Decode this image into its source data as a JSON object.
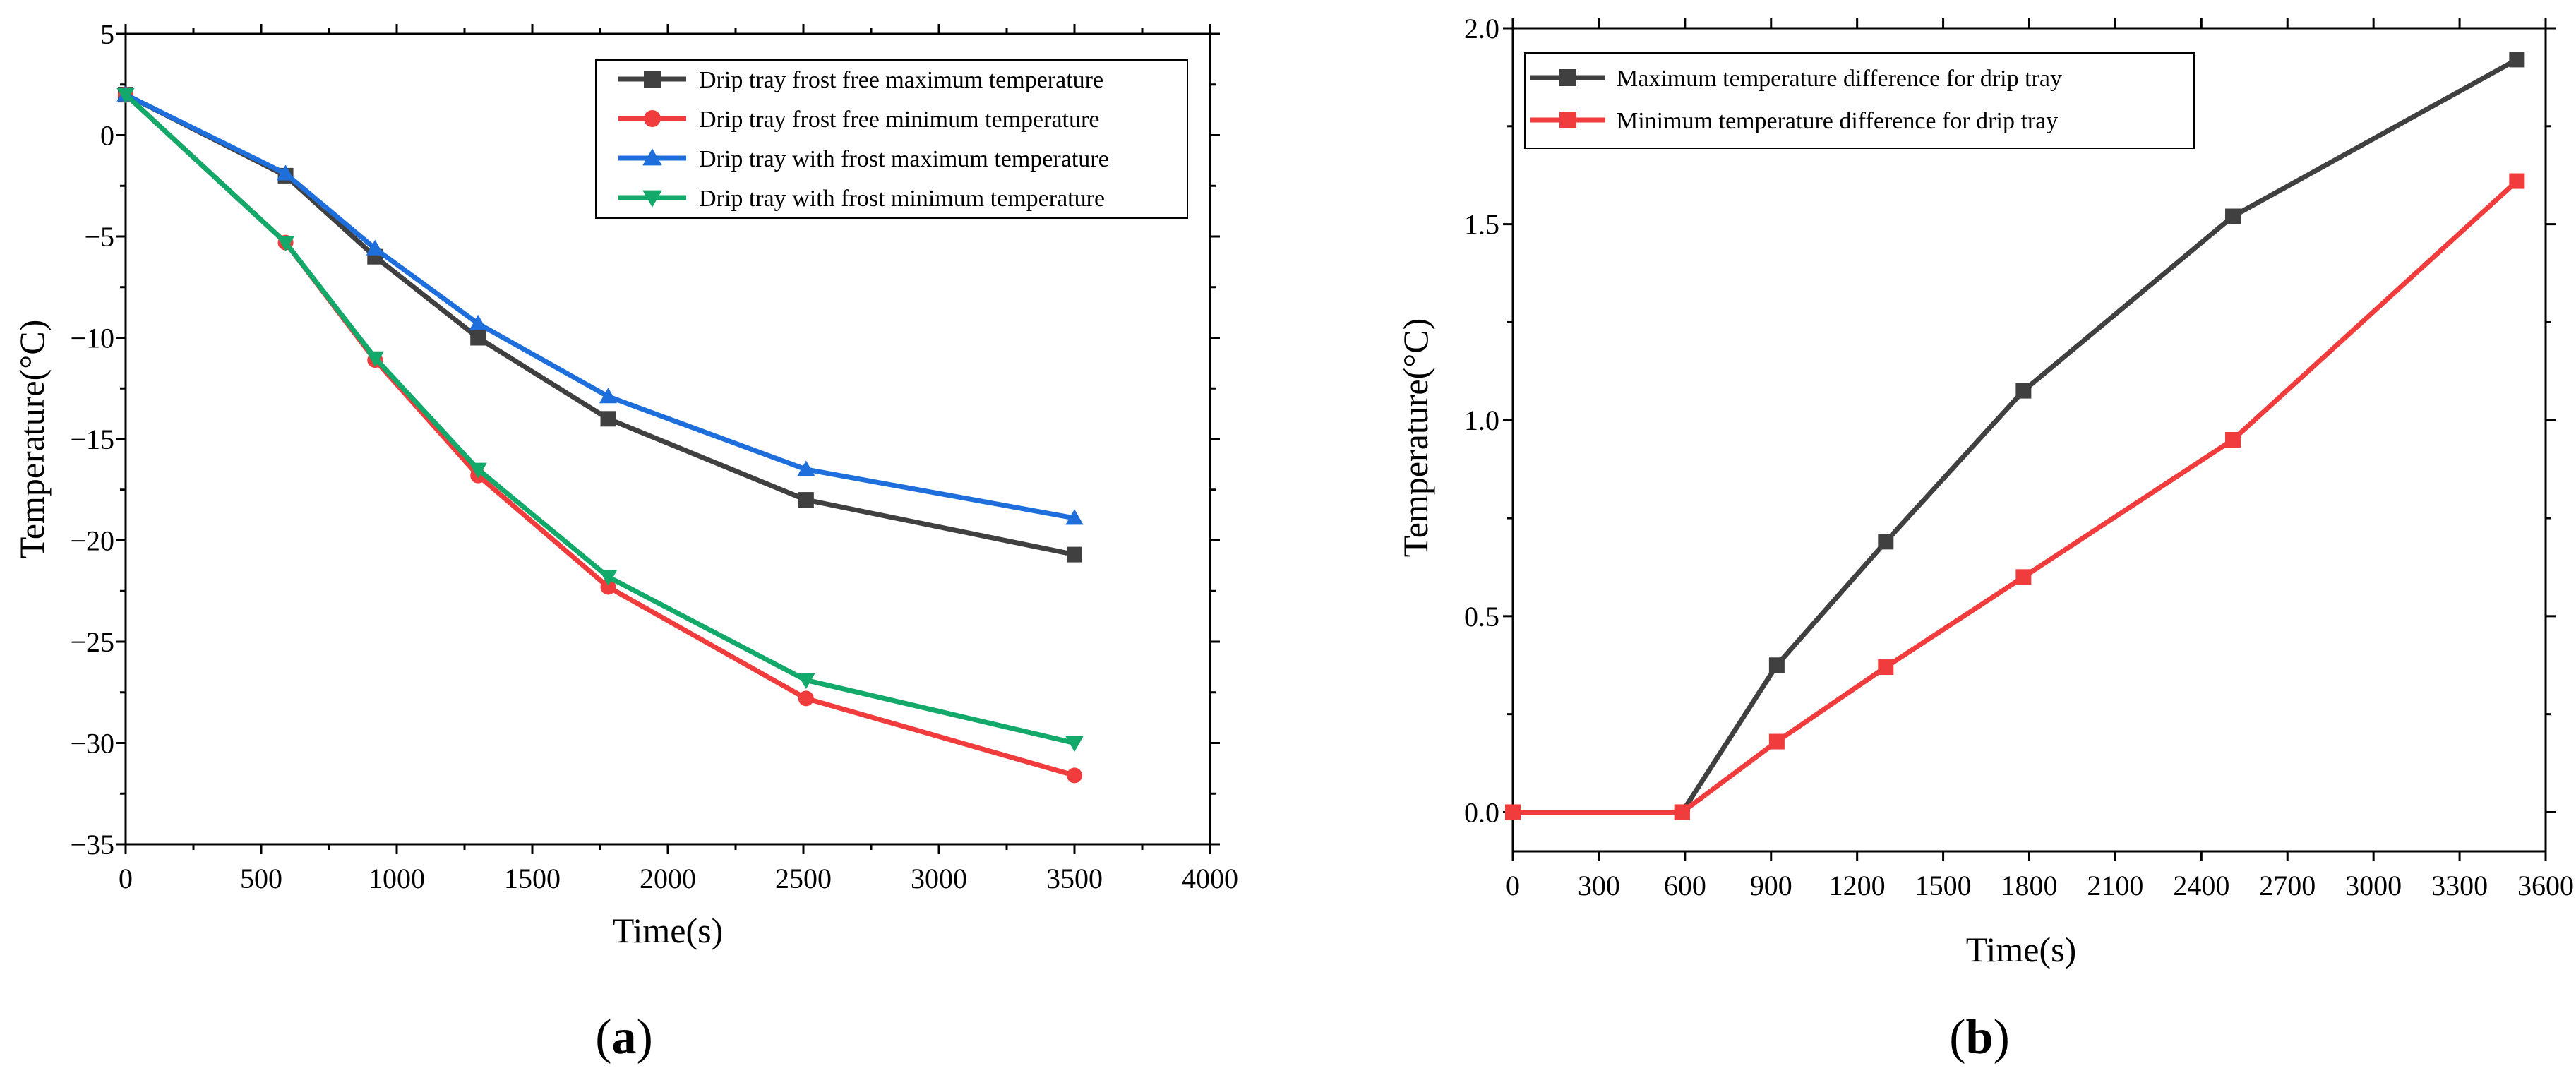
{
  "chart_data": [
    {
      "type": "line",
      "panel_label": "(a)",
      "panel_letter": "a",
      "xlabel": "Time(s)",
      "ylabel": "Temperature(°C)",
      "xlim": [
        0,
        4000
      ],
      "ylim": [
        -35,
        5
      ],
      "xticks": [
        0,
        500,
        1000,
        1500,
        2000,
        2500,
        3000,
        3500,
        4000
      ],
      "yticks": [
        5,
        0,
        -5,
        -10,
        -15,
        -20,
        -25,
        -30,
        -35
      ],
      "xtick_labels": [
        "0",
        "500",
        "1000",
        "1500",
        "2000",
        "2500",
        "3000",
        "3500",
        "4000"
      ],
      "ytick_labels": [
        "5",
        "0",
        "−5",
        "−10",
        "−15",
        "−20",
        "−25",
        "−30",
        "−35"
      ],
      "grid": false,
      "legend_position": "top-right",
      "series": [
        {
          "name": "Drip tray frost free maximum temperature",
          "color": "#404040",
          "marker": "square",
          "x": [
            0,
            590,
            920,
            1300,
            1780,
            2510,
            3500
          ],
          "y": [
            2.0,
            -2.0,
            -6.0,
            -10.0,
            -14.0,
            -18.0,
            -20.7
          ]
        },
        {
          "name": "Drip tray frost free minimum temperature",
          "color": "#f03c3c",
          "marker": "circle",
          "x": [
            0,
            590,
            920,
            1300,
            1780,
            2510,
            3500
          ],
          "y": [
            2.0,
            -5.3,
            -11.1,
            -16.8,
            -22.3,
            -27.8,
            -31.6
          ]
        },
        {
          "name": "Drip tray with frost maximum temperature",
          "color": "#1e6fdc",
          "marker": "triangle-up",
          "x": [
            0,
            590,
            920,
            1300,
            1780,
            2510,
            3500
          ],
          "y": [
            2.0,
            -1.9,
            -5.6,
            -9.3,
            -12.9,
            -16.5,
            -18.9
          ]
        },
        {
          "name": "Drip tray with frost minimum temperature",
          "color": "#12a96a",
          "marker": "triangle-down",
          "x": [
            0,
            590,
            920,
            1300,
            1780,
            2510,
            3500
          ],
          "y": [
            2.0,
            -5.3,
            -11.0,
            -16.5,
            -21.8,
            -26.9,
            -30.0
          ]
        }
      ]
    },
    {
      "type": "line",
      "panel_label": "(b)",
      "panel_letter": "b",
      "xlabel": "Time(s)",
      "ylabel": "Temperature(°C)",
      "xlim": [
        0,
        3600
      ],
      "ylim": [
        -0.1,
        2.0
      ],
      "xticks": [
        0,
        300,
        600,
        900,
        1200,
        1500,
        1800,
        2100,
        2400,
        2700,
        3000,
        3300,
        3600
      ],
      "yticks": [
        0.0,
        0.5,
        1.0,
        1.5,
        2.0
      ],
      "xtick_labels": [
        "0",
        "300",
        "600",
        "900",
        "1200",
        "1500",
        "1800",
        "2100",
        "2400",
        "2700",
        "3000",
        "3300",
        "3600"
      ],
      "ytick_labels": [
        "0.0",
        "0.5",
        "1.0",
        "1.5",
        "2.0"
      ],
      "grid": false,
      "legend_position": "top-left",
      "series": [
        {
          "name": "Maximum temperature difference for drip tray",
          "color": "#404040",
          "marker": "square",
          "x": [
            0,
            590,
            920,
            1300,
            1780,
            2510,
            3500
          ],
          "y": [
            0.0,
            0.0,
            0.375,
            0.69,
            1.075,
            1.52,
            1.92
          ]
        },
        {
          "name": "Minimum temperature difference for drip tray",
          "color": "#f03c3c",
          "marker": "square",
          "x": [
            0,
            590,
            920,
            1300,
            1780,
            2510,
            3500
          ],
          "y": [
            0.0,
            0.0,
            0.18,
            0.37,
            0.6,
            0.95,
            1.61
          ]
        }
      ]
    }
  ]
}
